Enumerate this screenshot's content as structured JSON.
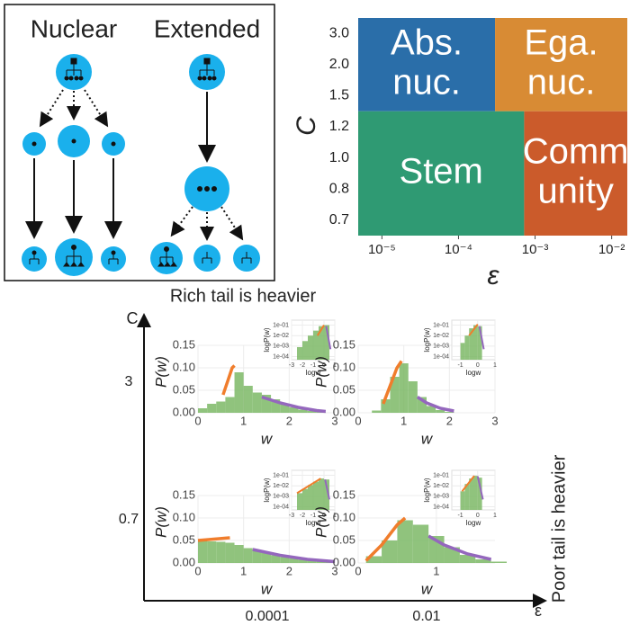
{
  "diagram": {
    "labels": [
      "Nuclear",
      "Extended"
    ]
  },
  "panel_c": {
    "title": "Rich tail is heavier",
    "y_label": "C",
    "y_categories": [
      "3",
      "0.7"
    ],
    "x_categories": [
      "0.0001",
      "0.01"
    ],
    "x_label": "ε",
    "right_label": "Poor tail is heavier"
  },
  "chart_data": [
    {
      "type": "region",
      "x_label": "ε",
      "y_label": "C",
      "log_x": true,
      "xlim": [
        4.9e-06,
        0.016
      ],
      "xticks": [
        {
          "value": 1e-05,
          "label": "10⁻⁵"
        },
        {
          "value": 0.0001,
          "label": "10⁻⁴"
        },
        {
          "value": 0.001,
          "label": "10⁻³"
        },
        {
          "value": 0.01,
          "label": "10⁻²"
        }
      ],
      "categories": [
        "3.0",
        "2.0",
        "1.5",
        "1.2",
        "1.0",
        "0.8",
        "0.7"
      ],
      "regions": [
        {
          "label": [
            "Abs.",
            "nuc."
          ],
          "x": [
            4.9e-06,
            0.0003
          ],
          "y": [
            "3.0",
            "1.5"
          ],
          "color": "#2a6ea9"
        },
        {
          "label": [
            "Ega.",
            "nuc."
          ],
          "x": [
            0.0003,
            0.016
          ],
          "y": [
            "3.0",
            "1.5"
          ],
          "color": "#d88b34"
        },
        {
          "label": [
            "Stem"
          ],
          "x": [
            4.9e-06,
            0.00072
          ],
          "y": [
            "1.2",
            "0.7"
          ],
          "color": "#2f9a73"
        },
        {
          "label": [
            "Comm",
            "unity"
          ],
          "x": [
            0.00072,
            0.016
          ],
          "y": [
            "1.2",
            "0.7"
          ],
          "color": "#cb5b2b"
        }
      ]
    },
    {
      "type": "histogram",
      "x_label": "w",
      "y_label": "P(w)",
      "xlim": [
        0,
        3
      ],
      "ylim": [
        0,
        0.15
      ],
      "xticks": [
        0,
        1,
        2,
        3
      ],
      "yticks": [
        {
          "value": 0,
          "label": "0.00"
        },
        {
          "value": 0.05,
          "label": "0.05"
        },
        {
          "value": 0.1,
          "label": "0.10"
        },
        {
          "value": 0.15,
          "label": "0.15"
        }
      ],
      "color": "#7db866",
      "bins": [
        0,
        0.2,
        0.4,
        0.6,
        0.8,
        1.0,
        1.2,
        1.4,
        1.6,
        1.8,
        2.0,
        2.2,
        2.4,
        2.6,
        2.8
      ],
      "values": [
        0.01,
        0.02,
        0.025,
        0.035,
        0.09,
        0.06,
        0.045,
        0.04,
        0.03,
        0.02,
        0.012,
        0.007,
        0.004,
        0.002
      ],
      "series": [
        {
          "color": "#f07d2c",
          "x": [
            0.55,
            0.65,
            0.75,
            0.8
          ],
          "values": [
            0.04,
            0.07,
            0.1,
            0.105
          ]
        },
        {
          "color": "#9467bd",
          "x": [
            1.4,
            1.8,
            2.2,
            2.6,
            2.8
          ],
          "values": [
            0.035,
            0.022,
            0.012,
            0.005,
            0.003
          ]
        }
      ],
      "inset": {
        "type": "histogram",
        "x_label": "logw",
        "y_label": "logP(w)",
        "log_y": true,
        "xlim": [
          -3,
          1
        ],
        "ylim": [
          5e-05,
          0.3
        ],
        "xticks": [
          -3,
          -2,
          -1,
          0,
          1
        ],
        "yticks": [
          {
            "value": 0.1,
            "label": "1e-01"
          },
          {
            "value": 0.01,
            "label": "1e-02"
          },
          {
            "value": 0.001,
            "label": "1e-03"
          },
          {
            "value": 0.0001,
            "label": "1e-04"
          }
        ],
        "color": "#7db866",
        "bins": [
          -2.5,
          -2,
          -1.5,
          -1,
          -0.5,
          0,
          0.5
        ],
        "values": [
          0.0008,
          0.003,
          0.01,
          0.03,
          0.08,
          0.1
        ],
        "series": [
          {
            "color": "#f07d2c",
            "x": [
              -0.6,
              0
            ],
            "values": [
              0.01,
              0.1
            ]
          },
          {
            "color": "#9467bd",
            "x": [
              0.2,
              0.6
            ],
            "values": [
              0.08,
              0.0005
            ]
          }
        ]
      }
    },
    {
      "type": "histogram",
      "x_label": "w",
      "y_label": "P(w)",
      "xlim": [
        0,
        3
      ],
      "ylim": [
        0,
        0.15
      ],
      "xticks": [
        0,
        1,
        2,
        3
      ],
      "yticks": [
        {
          "value": 0,
          "label": "0.00"
        },
        {
          "value": 0.05,
          "label": "0.05"
        },
        {
          "value": 0.1,
          "label": "0.10"
        },
        {
          "value": 0.15,
          "label": "0.15"
        }
      ],
      "color": "#7db866",
      "bins": [
        0.3,
        0.5,
        0.7,
        0.9,
        1.1,
        1.3,
        1.5,
        1.7,
        1.9,
        2.1
      ],
      "values": [
        0.005,
        0.03,
        0.08,
        0.11,
        0.07,
        0.035,
        0.015,
        0.006,
        0.002
      ],
      "series": [
        {
          "color": "#f07d2c",
          "x": [
            0.55,
            0.7,
            0.85,
            0.95
          ],
          "values": [
            0.02,
            0.06,
            0.1,
            0.115
          ]
        },
        {
          "color": "#9467bd",
          "x": [
            1.3,
            1.5,
            1.8,
            2.1
          ],
          "values": [
            0.035,
            0.022,
            0.01,
            0.004
          ]
        }
      ],
      "inset": {
        "type": "histogram",
        "x_label": "logw",
        "y_label": "logP(w)",
        "log_y": true,
        "xlim": [
          -1.5,
          1
        ],
        "ylim": [
          5e-05,
          0.3
        ],
        "xticks": [
          -1,
          0,
          1
        ],
        "yticks": [
          {
            "value": 0.1,
            "label": "1e-01"
          },
          {
            "value": 0.01,
            "label": "1e-02"
          },
          {
            "value": 0.001,
            "label": "1e-03"
          },
          {
            "value": 0.0001,
            "label": "1e-04"
          }
        ],
        "color": "#7db866",
        "bins": [
          -1,
          -0.75,
          -0.5,
          -0.25,
          0,
          0.25
        ],
        "values": [
          0.002,
          0.01,
          0.05,
          0.1,
          0.08
        ],
        "series": [
          {
            "color": "#f07d2c",
            "x": [
              -0.5,
              0
            ],
            "values": [
              0.01,
              0.12
            ]
          },
          {
            "color": "#9467bd",
            "x": [
              0.1,
              0.35
            ],
            "values": [
              0.08,
              0.0005
            ]
          }
        ]
      }
    },
    {
      "type": "histogram",
      "x_label": "w",
      "y_label": "P(w)",
      "xlim": [
        0,
        3
      ],
      "ylim": [
        0,
        0.15
      ],
      "xticks": [
        0,
        1,
        2,
        3
      ],
      "yticks": [
        {
          "value": 0,
          "label": "0.00"
        },
        {
          "value": 0.05,
          "label": "0.05"
        },
        {
          "value": 0.1,
          "label": "0.10"
        },
        {
          "value": 0.15,
          "label": "0.15"
        }
      ],
      "color": "#7db866",
      "bins": [
        0,
        0.2,
        0.4,
        0.6,
        0.8,
        1.0,
        1.2,
        1.4,
        1.6,
        1.8,
        2.0,
        2.2,
        2.4,
        2.6,
        2.8,
        3.0
      ],
      "values": [
        0.05,
        0.048,
        0.047,
        0.045,
        0.04,
        0.033,
        0.027,
        0.022,
        0.017,
        0.013,
        0.01,
        0.007,
        0.005,
        0.003,
        0.002
      ],
      "series": [
        {
          "color": "#f07d2c",
          "x": [
            0,
            0.7
          ],
          "values": [
            0.05,
            0.056
          ]
        },
        {
          "color": "#9467bd",
          "x": [
            1.2,
            1.8,
            2.4,
            3.0
          ],
          "values": [
            0.03,
            0.017,
            0.008,
            0.003
          ]
        }
      ],
      "inset": {
        "type": "histogram",
        "x_label": "logw",
        "y_label": "logP(w)",
        "log_y": true,
        "xlim": [
          -3,
          1
        ],
        "ylim": [
          5e-05,
          0.3
        ],
        "xticks": [
          -3,
          -2,
          -1,
          0,
          1
        ],
        "yticks": [
          {
            "value": 0.1,
            "label": "1e-01"
          },
          {
            "value": 0.01,
            "label": "1e-02"
          },
          {
            "value": 0.001,
            "label": "1e-03"
          },
          {
            "value": 0.0001,
            "label": "1e-04"
          }
        ],
        "color": "#7db866",
        "bins": [
          -2.5,
          -2,
          -1.5,
          -1,
          -0.5,
          0,
          0.5
        ],
        "values": [
          0.002,
          0.005,
          0.012,
          0.025,
          0.05,
          0.04
        ],
        "series": [
          {
            "color": "#f07d2c",
            "x": [
              -2.5,
              -0.3
            ],
            "values": [
              0.002,
              0.05
            ]
          },
          {
            "color": "#9467bd",
            "x": [
              0.1,
              0.5
            ],
            "values": [
              0.04,
              0.0005
            ]
          }
        ]
      }
    },
    {
      "type": "histogram",
      "x_label": "w",
      "y_label": "P(w)",
      "xlim": [
        0,
        1.75
      ],
      "ylim": [
        0,
        0.15
      ],
      "xticks": [
        0,
        1
      ],
      "yticks": [
        {
          "value": 0,
          "label": "0.00"
        },
        {
          "value": 0.05,
          "label": "0.05"
        },
        {
          "value": 0.1,
          "label": "0.10"
        },
        {
          "value": 0.15,
          "label": "0.15"
        }
      ],
      "color": "#7db866",
      "bins": [
        0.1,
        0.3,
        0.5,
        0.7,
        0.9,
        1.1,
        1.3,
        1.5,
        1.7,
        1.9
      ],
      "values": [
        0.015,
        0.05,
        0.095,
        0.085,
        0.06,
        0.035,
        0.018,
        0.008,
        0.003
      ],
      "series": [
        {
          "color": "#f07d2c",
          "x": [
            0.1,
            0.3,
            0.5,
            0.6
          ],
          "values": [
            0.005,
            0.04,
            0.085,
            0.1
          ]
        },
        {
          "color": "#9467bd",
          "x": [
            0.9,
            1.1,
            1.4,
            1.7
          ],
          "values": [
            0.06,
            0.04,
            0.02,
            0.008
          ]
        }
      ],
      "inset": {
        "type": "histogram",
        "x_label": "logw",
        "y_label": "logP(w)",
        "log_y": true,
        "xlim": [
          -1.5,
          1
        ],
        "ylim": [
          5e-05,
          0.3
        ],
        "xticks": [
          -1,
          0,
          1
        ],
        "yticks": [
          {
            "value": 0.1,
            "label": "1e-01"
          },
          {
            "value": 0.01,
            "label": "1e-02"
          },
          {
            "value": 0.001,
            "label": "1e-03"
          },
          {
            "value": 0.0001,
            "label": "1e-04"
          }
        ],
        "color": "#7db866",
        "bins": [
          -1,
          -0.75,
          -0.5,
          -0.25,
          0,
          0.25
        ],
        "values": [
          0.003,
          0.015,
          0.05,
          0.09,
          0.06
        ],
        "series": [
          {
            "color": "#f07d2c",
            "x": [
              -0.9,
              -0.2
            ],
            "values": [
              0.003,
              0.09
            ]
          },
          {
            "color": "#9467bd",
            "x": [
              0,
              0.3
            ],
            "values": [
              0.08,
              0.0005
            ]
          }
        ]
      }
    }
  ]
}
